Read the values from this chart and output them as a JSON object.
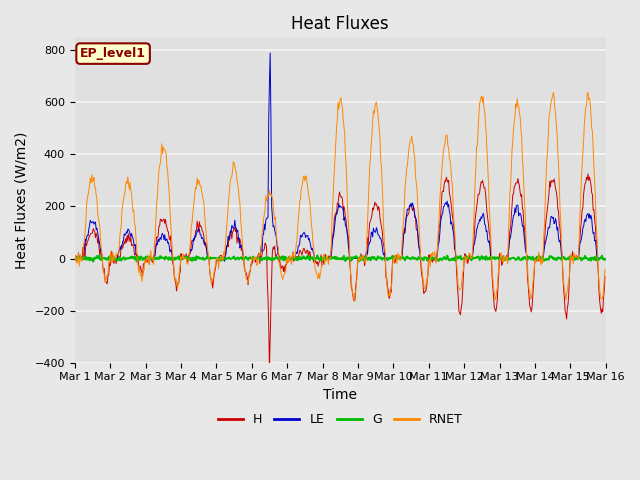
{
  "title": "Heat Fluxes",
  "xlabel": "Time",
  "ylabel": "Heat Fluxes (W/m2)",
  "annotation": "EP_level1",
  "ylim": [
    -400,
    850
  ],
  "xlim_days": [
    0,
    15
  ],
  "yticks": [
    -400,
    -200,
    0,
    200,
    400,
    600,
    800
  ],
  "xtick_labels": [
    "Mar 1",
    "Mar 2",
    "Mar 3",
    "Mar 4",
    "Mar 5",
    "Mar 6",
    "Mar 7",
    "Mar 8",
    "Mar 9",
    "Mar 10",
    "Mar 11",
    "Mar 12",
    "Mar 13",
    "Mar 14",
    "Mar 15",
    "Mar 16"
  ],
  "colors": {
    "H": "#cc0000",
    "LE": "#0000cc",
    "G": "#00bb00",
    "RNET": "#ff8800"
  },
  "legend_labels": [
    "H",
    "LE",
    "G",
    "RNET"
  ],
  "fig_bg": "#e8e8e8",
  "plot_bg": "#e0e0e0",
  "grid_color": "#f5f5f5",
  "title_fontsize": 12,
  "label_fontsize": 10,
  "tick_fontsize": 8,
  "linewidth": 0.7
}
